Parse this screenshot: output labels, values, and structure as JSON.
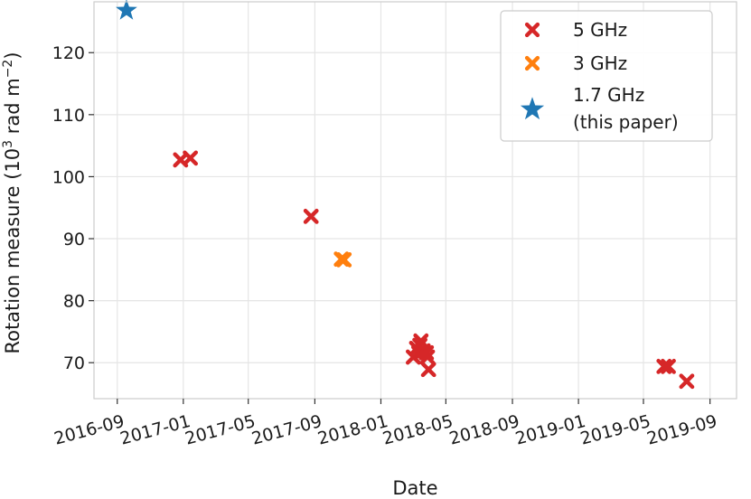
{
  "chart_data": {
    "type": "scatter",
    "xlabel": "Date",
    "ylabel": "Rotation measure (10³ rad m⁻²)",
    "ylabel_parts": {
      "base": "Rotation measure (10",
      "exp1": "3",
      "mid": " rad m",
      "exp2": "−2",
      "end": ")"
    },
    "x_ticks": [
      "2016-09",
      "2017-01",
      "2017-05",
      "2017-09",
      "2018-01",
      "2018-05",
      "2018-09",
      "2019-01",
      "2019-05",
      "2019-09"
    ],
    "y_ticks": [
      70,
      80,
      90,
      100,
      110,
      120
    ],
    "xlim": [
      "2016-07-20",
      "2019-10-20"
    ],
    "ylim": [
      64.2,
      128.2
    ],
    "grid": true,
    "legend_position": "top-right",
    "series": [
      {
        "name": "5 GHz",
        "marker": "x",
        "color": "#d62728",
        "points": [
          {
            "x": "2016-12-27",
            "y": 102.7
          },
          {
            "x": "2017-01-14",
            "y": 103.0
          },
          {
            "x": "2017-08-25",
            "y": 93.6
          },
          {
            "x": "2018-03-02",
            "y": 70.9
          },
          {
            "x": "2018-03-08",
            "y": 72.3
          },
          {
            "x": "2018-03-12",
            "y": 71.6
          },
          {
            "x": "2018-03-14",
            "y": 72.8
          },
          {
            "x": "2018-03-16",
            "y": 73.5
          },
          {
            "x": "2018-03-20",
            "y": 71.9
          },
          {
            "x": "2018-03-26",
            "y": 71.6
          },
          {
            "x": "2018-03-28",
            "y": 70.9
          },
          {
            "x": "2018-03-30",
            "y": 68.9
          },
          {
            "x": "2019-06-08",
            "y": 69.4
          },
          {
            "x": "2019-06-16",
            "y": 69.4
          },
          {
            "x": "2019-07-20",
            "y": 67.0
          }
        ]
      },
      {
        "name": "3 GHz",
        "marker": "x",
        "color": "#ff7f0e",
        "points": [
          {
            "x": "2017-10-20",
            "y": 86.7
          },
          {
            "x": "2017-10-25",
            "y": 86.6
          }
        ]
      },
      {
        "name": "1.7 GHz\n(this paper)",
        "name_lines": [
          "1.7 GHz",
          "(this paper)"
        ],
        "marker": "star",
        "color": "#1f77b4",
        "points": [
          {
            "x": "2016-09-18",
            "y": 126.8
          }
        ]
      }
    ]
  }
}
